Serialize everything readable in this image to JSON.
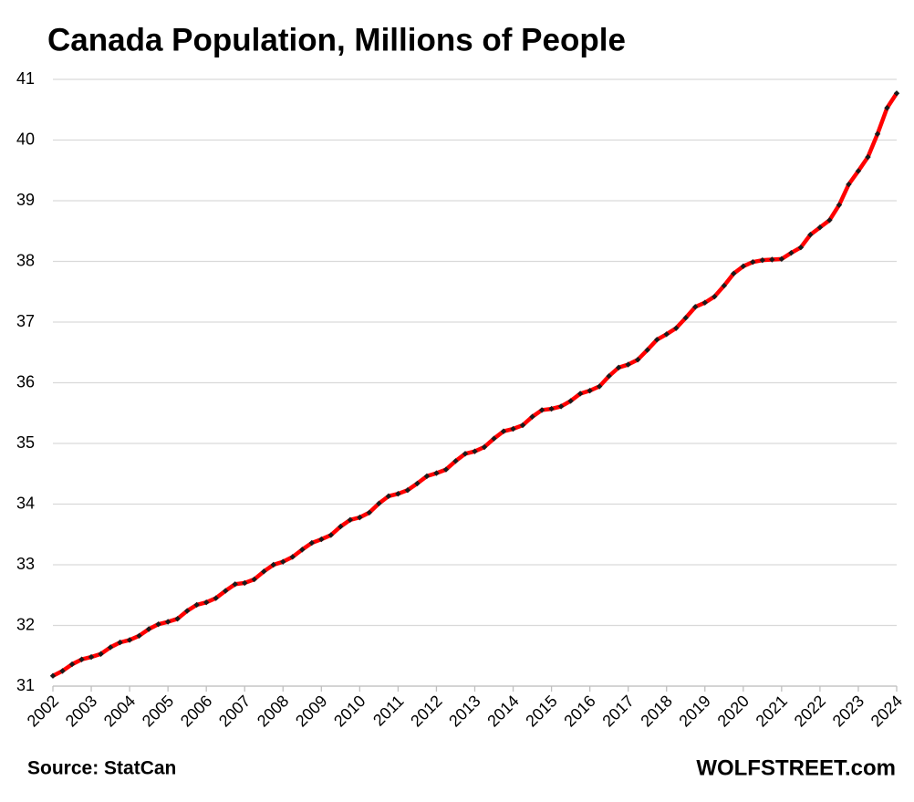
{
  "chart_data": {
    "type": "line",
    "title": "Canada Population, Millions of People",
    "source": "Source: StatCan",
    "credit": "WOLFSTREET.com",
    "x": [
      2002,
      2002.25,
      2002.5,
      2002.75,
      2003,
      2003.25,
      2003.5,
      2003.75,
      2004,
      2004.25,
      2004.5,
      2004.75,
      2005,
      2005.25,
      2005.5,
      2005.75,
      2006,
      2006.25,
      2006.5,
      2006.75,
      2007,
      2007.25,
      2007.5,
      2007.75,
      2008,
      2008.25,
      2008.5,
      2008.75,
      2009,
      2009.25,
      2009.5,
      2009.75,
      2010,
      2010.25,
      2010.5,
      2010.75,
      2011,
      2011.25,
      2011.5,
      2011.75,
      2012,
      2012.25,
      2012.5,
      2012.75,
      2013,
      2013.25,
      2013.5,
      2013.75,
      2014,
      2014.25,
      2014.5,
      2014.75,
      2015,
      2015.25,
      2015.5,
      2015.75,
      2016,
      2016.25,
      2016.5,
      2016.75,
      2017,
      2017.25,
      2017.5,
      2017.75,
      2018,
      2018.25,
      2018.5,
      2018.75,
      2019,
      2019.25,
      2019.5,
      2019.75,
      2020,
      2020.25,
      2020.5,
      2020.75,
      2021,
      2021.25,
      2021.5,
      2021.75,
      2022,
      2022.25,
      2022.5,
      2022.75,
      2023,
      2023.25,
      2023.5,
      2023.75,
      2024
    ],
    "series": [
      {
        "color": "#ff0000",
        "marker_color": "#1a1a1a",
        "values": [
          31.17,
          31.25,
          31.36,
          31.44,
          31.48,
          31.53,
          31.64,
          31.72,
          31.76,
          31.83,
          31.94,
          32.02,
          32.06,
          32.11,
          32.24,
          32.34,
          32.38,
          32.45,
          32.57,
          32.68,
          32.7,
          32.76,
          32.89,
          33.0,
          33.05,
          33.13,
          33.25,
          33.36,
          33.42,
          33.49,
          33.63,
          33.74,
          33.78,
          33.86,
          34.01,
          34.13,
          34.17,
          34.23,
          34.34,
          34.46,
          34.51,
          34.57,
          34.71,
          34.83,
          34.87,
          34.94,
          35.08,
          35.2,
          35.24,
          35.3,
          35.44,
          35.55,
          35.57,
          35.61,
          35.7,
          35.82,
          35.87,
          35.94,
          36.11,
          36.25,
          36.3,
          36.38,
          36.54,
          36.71,
          36.8,
          36.9,
          37.07,
          37.25,
          37.32,
          37.42,
          37.6,
          37.8,
          37.92,
          37.99,
          38.02,
          38.03,
          38.04,
          38.14,
          38.23,
          38.44,
          38.56,
          38.68,
          38.93,
          39.27,
          39.49,
          39.72,
          40.1,
          40.53,
          40.77
        ]
      }
    ],
    "xlim": [
      2002,
      2024
    ],
    "xticks": [
      2002,
      2003,
      2004,
      2005,
      2006,
      2007,
      2008,
      2009,
      2010,
      2011,
      2012,
      2013,
      2014,
      2015,
      2016,
      2017,
      2018,
      2019,
      2020,
      2021,
      2022,
      2023,
      2024
    ],
    "ylim": [
      31,
      41
    ],
    "yticks": [
      31,
      32,
      33,
      34,
      35,
      36,
      37,
      38,
      39,
      40,
      41
    ],
    "grid": true
  }
}
